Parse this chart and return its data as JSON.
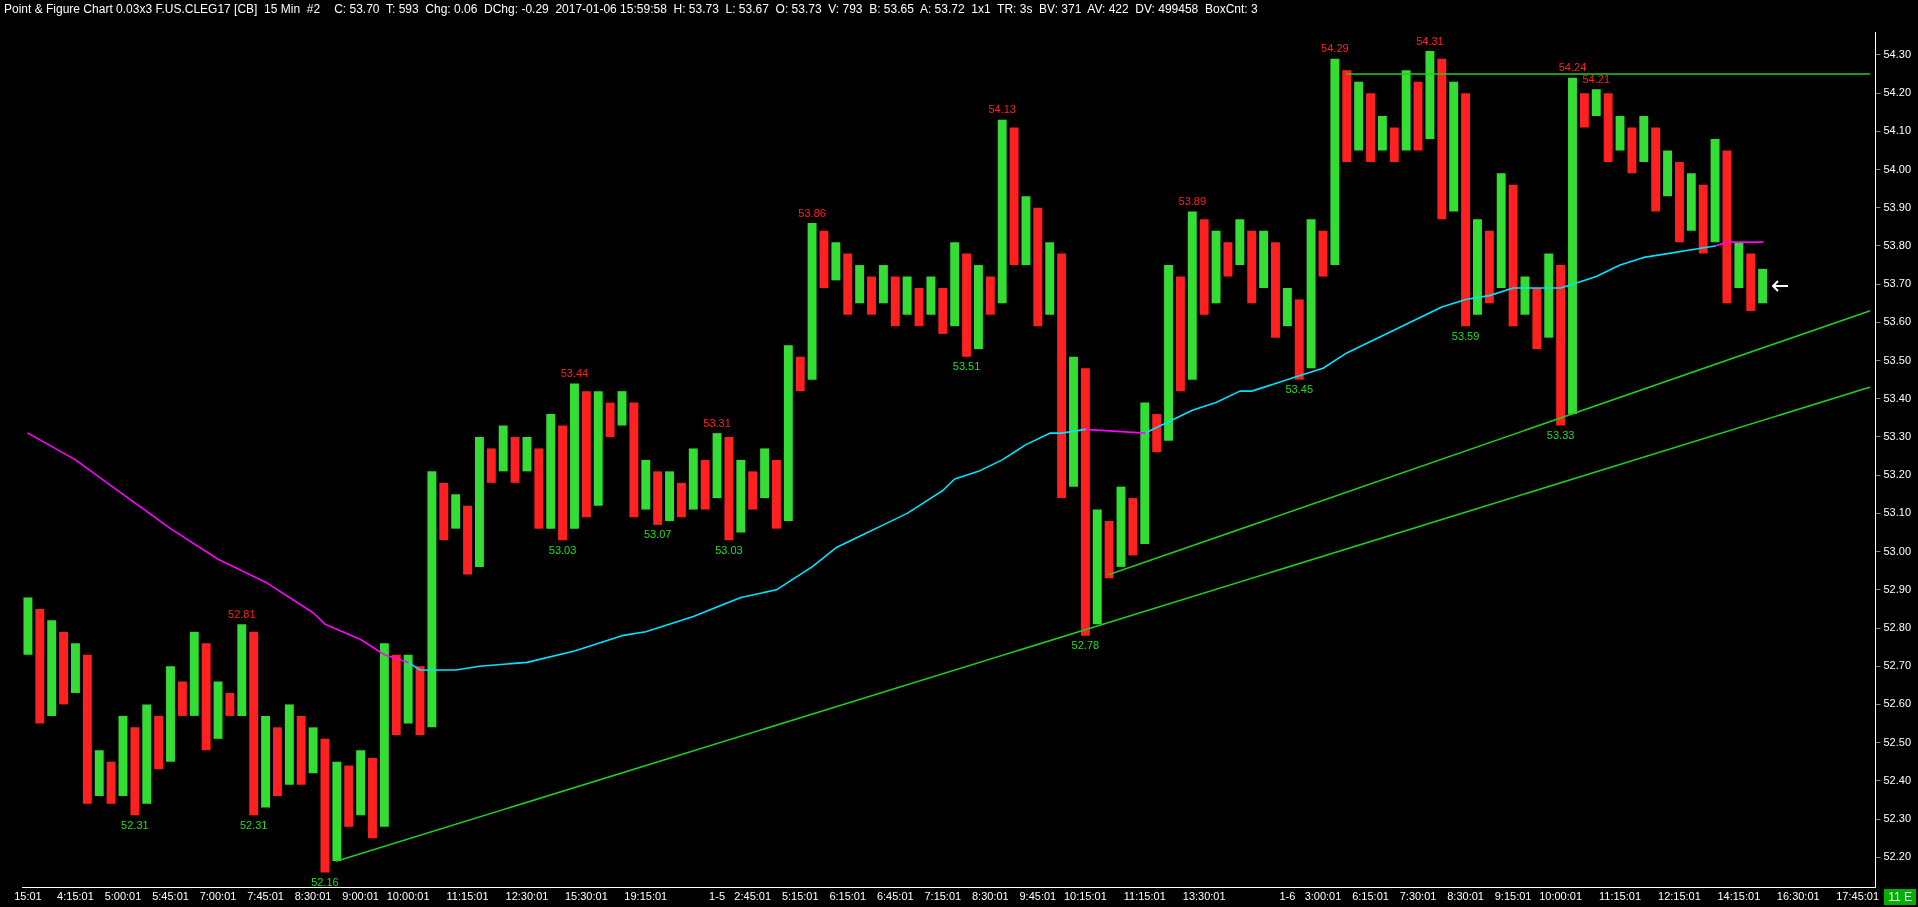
{
  "chart_data": {
    "type": "bar",
    "title": "Point & Figure Chart 0.03x3 F.US.CLEG17 [CB]  15 Min  #2",
    "subtitle": "C: 53.70  T: 593  Chg: 0.06  DChg: -0.29  2017-01-06 15:59:58  H: 53.73  L: 53.67  O: 53.73  V: 793  B: 53.65  A: 53.72  1x1  TR: 3s  BV: 371  AV: 422  DV: 499458  BoxCnt: 3",
    "marker": "none",
    "annotations": [
      "11 E",
      {
        "text": "52.31",
        "y": 52.31
      },
      {
        "text": "52.81",
        "y": 52.81
      },
      {
        "text": "52.31",
        "y": 52.31
      },
      {
        "text": "52.16",
        "y": 52.16
      },
      {
        "text": "53.03",
        "y": 53.03
      },
      {
        "text": "53.44",
        "y": 53.44
      },
      {
        "text": "53.07",
        "y": 53.07
      },
      {
        "text": "53.31",
        "y": 53.31
      },
      {
        "text": "53.03",
        "y": 53.03
      },
      {
        "text": "53.86",
        "y": 53.86
      },
      {
        "text": "53.51",
        "y": 53.51
      },
      {
        "text": "54.13",
        "y": 54.13
      },
      {
        "text": "52.78",
        "y": 52.78
      },
      {
        "text": "53.89",
        "y": 53.89
      },
      {
        "text": "53.45",
        "y": 53.45
      },
      {
        "text": "54.29",
        "y": 54.29
      },
      {
        "text": "54.31",
        "y": 54.31
      },
      {
        "text": "53.59",
        "y": 53.59
      },
      {
        "text": "53.33",
        "y": 53.33
      },
      {
        "text": "54.24",
        "y": 54.24
      },
      {
        "text": "54.21",
        "y": 54.21
      }
    ],
    "categories": [
      "15:01",
      null,
      null,
      null,
      "4:15:01",
      null,
      null,
      null,
      "5:00:01",
      null,
      null,
      null,
      "5:45:01",
      null,
      null,
      null,
      "7:00:01",
      null,
      null,
      null,
      "7:45:01",
      null,
      null,
      null,
      "8:30:01",
      null,
      null,
      null,
      "9:00:01",
      null,
      null,
      null,
      "10:00:01",
      null,
      null,
      null,
      null,
      "11:15:01",
      null,
      null,
      null,
      null,
      "12:30:01",
      null,
      null,
      null,
      null,
      "15:30:01",
      null,
      null,
      null,
      null,
      "19:15:01",
      null,
      null,
      null,
      null,
      null,
      "1-5",
      null,
      null,
      "2:45:01",
      null,
      null,
      null,
      "5:15:01",
      null,
      null,
      null,
      "6:15:01",
      null,
      null,
      null,
      "6:45:01",
      null,
      null,
      null,
      "7:15:01",
      null,
      null,
      null,
      "8:30:01",
      null,
      null,
      null,
      "9:45:01",
      null,
      null,
      null,
      "10:15:01",
      null,
      null,
      null,
      null,
      "11:15:01",
      null,
      null,
      null,
      null,
      "13:30:01",
      null,
      null,
      null,
      null,
      null,
      null,
      "1-6",
      null,
      null,
      "3:00:01",
      null,
      null,
      null,
      "6:15:01",
      null,
      null,
      null,
      "7:30:01",
      null,
      null,
      null,
      "8:30:01",
      null,
      null,
      null,
      "9:15:01",
      null,
      null,
      null,
      "10:00:01",
      null,
      null,
      null,
      null,
      "11:15:01",
      null,
      null,
      null,
      null,
      "12:15:01",
      null,
      null,
      null,
      null,
      "14:15:01",
      null,
      null,
      null,
      null,
      "16:30:01",
      null,
      null,
      null,
      null,
      "17:45:01",
      null
    ],
    "ylim": [
      52.12,
      54.36
    ],
    "yticks": [
      {
        "value": 52.2,
        "label": "52.20"
      },
      {
        "value": 52.3,
        "label": "52.30"
      },
      {
        "value": 52.4,
        "label": "52.40"
      },
      {
        "value": 52.5,
        "label": "52.50"
      },
      {
        "value": 52.6,
        "label": "52.60"
      },
      {
        "value": 52.7,
        "label": "52.70"
      },
      {
        "value": 52.8,
        "label": "52.80"
      },
      {
        "value": 52.9,
        "label": "52.90"
      },
      {
        "value": 53.0,
        "label": "53.00"
      },
      {
        "value": 53.1,
        "label": "53.10"
      },
      {
        "value": 53.2,
        "label": "53.20"
      },
      {
        "value": 53.3,
        "label": "53.30"
      },
      {
        "value": 53.4,
        "label": "53.40"
      },
      {
        "value": 53.5,
        "label": "53.50"
      },
      {
        "value": 53.6,
        "label": "53.60"
      },
      {
        "value": 53.7,
        "label": "53.70"
      },
      {
        "value": 53.8,
        "label": "53.80"
      },
      {
        "value": 53.9,
        "label": "53.90"
      },
      {
        "value": 54.0,
        "label": "54.00"
      },
      {
        "value": 54.1,
        "label": "54.10"
      },
      {
        "value": 54.2,
        "label": "54.20"
      },
      {
        "value": 54.3,
        "label": "54.30"
      }
    ],
    "series": [
      {
        "type": "bar",
        "colors": [
          "#33dd33",
          "#ff2020",
          "#33dd33",
          "#ff2020",
          "#33dd33",
          "#ff2020",
          "#33dd33",
          "#ff2020",
          "#33dd33",
          "#ff2020",
          "#33dd33",
          "#ff2020",
          "#33dd33",
          "#ff2020",
          "#33dd33",
          "#ff2020",
          "#33dd33",
          "#ff2020",
          "#33dd33",
          "#ff2020",
          "#33dd33",
          "#ff2020",
          "#33dd33",
          "#ff2020",
          "#33dd33",
          "#ff2020",
          "#33dd33",
          "#ff2020",
          "#33dd33",
          "#ff2020",
          "#33dd33",
          "#ff2020",
          "#33dd33",
          "#ff2020",
          "#33dd33",
          "#ff2020",
          "#33dd33",
          "#ff2020",
          "#33dd33",
          "#ff2020",
          "#33dd33",
          "#ff2020",
          "#33dd33",
          "#ff2020",
          "#33dd33",
          "#ff2020",
          "#33dd33",
          "#ff2020",
          "#33dd33",
          "#ff2020",
          "#33dd33",
          "#ff2020",
          "#33dd33",
          "#ff2020",
          "#33dd33",
          "#ff2020",
          "#33dd33",
          "#ff2020",
          "#33dd33",
          "#ff2020",
          "#33dd33",
          "#ff2020",
          "#33dd33",
          "#ff2020",
          "#33dd33",
          "#ff2020",
          "#33dd33",
          "#ff2020",
          "#33dd33",
          "#ff2020",
          "#33dd33",
          "#ff2020",
          "#33dd33",
          "#ff2020",
          "#33dd33",
          "#ff2020",
          "#33dd33",
          "#ff2020",
          "#33dd33",
          "#ff2020",
          "#33dd33",
          "#ff2020",
          "#33dd33",
          "#ff2020",
          "#33dd33",
          "#ff2020",
          "#33dd33",
          "#ff2020",
          "#33dd33",
          "#ff2020",
          "#33dd33",
          "#ff2020",
          "#33dd33",
          "#ff2020",
          "#33dd33",
          "#ff2020",
          "#33dd33",
          "#ff2020",
          "#33dd33",
          "#ff2020",
          "#33dd33",
          "#ff2020",
          "#33dd33",
          "#ff2020",
          "#33dd33",
          "#ff2020",
          "#33dd33",
          "#ff2020",
          "#33dd33",
          "#ff2020",
          "#33dd33",
          "#ff2020",
          "#33dd33",
          "#ff2020",
          "#33dd33",
          "#ff2020",
          "#33dd33",
          "#ff2020",
          "#33dd33",
          "#ff2020",
          "#33dd33",
          "#ff2020",
          "#33dd33",
          "#ff2020",
          "#33dd33",
          "#ff2020",
          "#33dd33",
          "#ff2020",
          "#33dd33",
          "#ff2020",
          "#33dd33",
          "#ff2020",
          "#33dd33",
          "#ff2020",
          "#33dd33",
          "#ff2020",
          "#33dd33",
          "#ff2020",
          "#33dd33",
          "#ff2020",
          "#33dd33",
          "#ff2020",
          "#33dd33",
          "#ff2020",
          "#33dd33",
          "#ff2020",
          "#33dd33",
          "#ff2020",
          "#33dd33",
          "#ff2020",
          "#33dd33",
          "#ff2020",
          "#33dd33",
          "#ff2020",
          "#33dd33",
          "#ff2020"
        ],
        "base": [
          52.73,
          52.55,
          52.57,
          52.6,
          52.63,
          52.34,
          52.36,
          52.34,
          52.36,
          52.31,
          52.34,
          52.43,
          52.45,
          52.57,
          52.57,
          52.48,
          52.51,
          52.57,
          52.57,
          52.31,
          52.33,
          52.36,
          52.39,
          52.39,
          52.42,
          52.16,
          52.19,
          52.28,
          52.31,
          52.25,
          52.28,
          52.52,
          52.55,
          52.52,
          52.54,
          53.03,
          53.06,
          52.94,
          52.96,
          53.18,
          53.21,
          53.18,
          53.21,
          53.06,
          53.06,
          53.03,
          53.06,
          53.09,
          53.12,
          53.3,
          53.33,
          53.09,
          53.11,
          53.07,
          53.08,
          53.09,
          53.11,
          53.11,
          53.14,
          53.03,
          53.05,
          53.11,
          53.14,
          53.06,
          53.08,
          53.42,
          53.45,
          53.69,
          53.71,
          53.62,
          53.65,
          53.62,
          53.65,
          53.59,
          53.62,
          53.59,
          53.62,
          53.57,
          53.59,
          53.51,
          53.53,
          53.62,
          53.65,
          53.75,
          53.75,
          53.59,
          53.62,
          53.14,
          53.17,
          52.78,
          52.81,
          52.93,
          52.96,
          52.99,
          53.02,
          53.26,
          53.29,
          53.42,
          53.45,
          53.62,
          53.65,
          53.72,
          53.75,
          53.65,
          53.69,
          53.56,
          53.59,
          53.45,
          53.48,
          53.72,
          53.75,
          54.02,
          54.05,
          54.02,
          54.05,
          54.02,
          54.05,
          54.05,
          54.08,
          53.87,
          53.89,
          53.59,
          53.62,
          53.65,
          53.69,
          53.59,
          53.62,
          53.53,
          53.56,
          53.33,
          53.36,
          54.11,
          54.14,
          54.02,
          54.05,
          53.99,
          54.02,
          53.89,
          53.93,
          53.81,
          53.84,
          53.78,
          53.81,
          53.65,
          53.69,
          53.63,
          53.65,
          null,
          null,
          null,
          null,
          null,
          null,
          null,
          null,
          null
        ],
        "values": [
          0.15,
          0.3,
          0.25,
          0.19,
          0.13,
          0.39,
          0.12,
          0.11,
          0.21,
          0.23,
          0.26,
          0.14,
          0.25,
          0.09,
          0.22,
          0.28,
          0.15,
          0.06,
          0.24,
          0.48,
          0.24,
          0.18,
          0.21,
          0.18,
          0.12,
          0.35,
          0.26,
          0.16,
          0.17,
          0.21,
          0.48,
          0.21,
          0.18,
          0.18,
          0.67,
          0.15,
          0.09,
          0.18,
          0.34,
          0.09,
          0.12,
          0.12,
          0.09,
          0.21,
          0.3,
          0.3,
          0.38,
          0.33,
          0.3,
          0.09,
          0.09,
          0.3,
          0.13,
          0.14,
          0.13,
          0.09,
          0.16,
          0.13,
          0.17,
          0.27,
          0.19,
          0.1,
          0.13,
          0.18,
          0.46,
          0.09,
          0.41,
          0.15,
          0.1,
          0.16,
          0.1,
          0.1,
          0.1,
          0.13,
          0.1,
          0.1,
          0.1,
          0.12,
          0.22,
          0.27,
          0.22,
          0.1,
          0.48,
          0.36,
          0.18,
          0.31,
          0.19,
          0.64,
          0.34,
          0.7,
          0.3,
          0.15,
          0.21,
          0.15,
          0.37,
          0.1,
          0.46,
          0.3,
          0.44,
          0.25,
          0.19,
          0.09,
          0.12,
          0.19,
          0.15,
          0.25,
          0.1,
          0.21,
          0.39,
          0.12,
          0.54,
          0.24,
          0.18,
          0.18,
          0.09,
          0.09,
          0.21,
          0.18,
          0.23,
          0.42,
          0.34,
          0.61,
          0.25,
          0.19,
          0.3,
          0.37,
          0.1,
          0.16,
          0.22,
          0.42,
          0.88,
          0.09,
          0.07,
          0.18,
          0.09,
          0.12,
          0.12,
          0.22,
          0.12,
          0.21,
          0.15,
          0.18,
          0.27,
          0.4,
          0.12,
          0.15,
          0.09,
          null,
          null,
          null,
          null,
          null,
          null,
          null,
          null,
          null
        ]
      },
      {
        "type": "line",
        "color": "#ff00ff",
        "values": [
          53.31,
          null,
          null,
          null,
          53.24,
          null,
          null,
          null,
          53.15,
          null,
          null,
          null,
          53.06,
          null,
          null,
          null,
          52.98,
          null,
          null,
          null,
          52.92,
          null,
          null,
          null,
          52.84,
          52.81,
          null,
          null,
          52.77,
          null,
          52.73,
          null,
          52.71,
          null,
          null,
          null,
          null,
          null,
          null,
          null,
          null,
          null,
          null,
          null,
          null,
          null,
          null,
          null,
          null,
          null,
          null,
          null,
          null,
          null,
          null,
          null,
          null,
          null,
          null,
          null,
          null,
          null,
          null,
          null,
          null,
          null,
          null,
          null,
          null,
          null,
          null,
          null,
          null,
          null,
          null,
          null,
          null,
          null,
          null,
          null,
          null,
          null,
          null,
          null,
          null,
          null,
          null,
          null,
          null,
          null,
          null,
          null,
          null,
          null,
          null,
          null,
          null,
          null,
          null,
          null,
          null,
          null,
          null,
          null,
          null,
          null,
          null,
          null,
          null,
          null,
          null,
          null,
          null,
          null,
          null,
          null,
          null,
          null,
          null,
          null,
          null,
          null,
          null,
          null,
          null,
          null,
          null,
          null,
          null,
          null,
          null,
          null,
          null,
          null,
          null,
          null,
          null,
          null,
          null,
          null,
          null,
          null,
          null,
          null,
          null,
          null,
          null,
          null,
          null,
          null,
          null,
          null,
          null,
          null,
          null,
          null
        ]
      },
      {
        "type": "line",
        "color": "#00e5ff",
        "values": [
          null,
          null,
          null,
          null,
          null,
          null,
          null,
          null,
          null,
          null,
          null,
          null,
          null,
          null,
          null,
          null,
          null,
          null,
          null,
          null,
          null,
          null,
          null,
          null,
          null,
          null,
          null,
          null,
          null,
          null,
          null,
          null,
          52.71,
          52.69,
          null,
          null,
          52.69,
          null,
          52.7,
          null,
          null,
          null,
          52.71,
          null,
          null,
          null,
          52.74,
          null,
          null,
          null,
          52.78,
          null,
          52.79,
          null,
          null,
          null,
          52.83,
          null,
          null,
          null,
          52.88,
          null,
          null,
          52.9,
          52.92,
          null,
          52.96,
          null,
          53.01,
          null,
          53.04,
          null,
          53.07,
          null,
          53.1,
          null,
          53.14,
          53.16,
          53.19,
          null,
          53.21,
          null,
          53.24,
          null,
          53.28,
          null,
          53.31,
          53.31,
          null,
          53.32,
          null,
          null,
          null,
          null,
          null,
          null,
          null,
          null,
          null,
          null,
          null,
          null,
          null,
          null,
          null,
          null,
          null,
          null,
          null,
          null,
          null,
          null,
          null,
          null,
          null,
          null,
          null,
          null,
          null,
          null,
          null,
          null,
          null,
          null,
          null,
          null,
          null,
          null,
          null,
          null,
          null,
          null,
          null,
          null,
          null,
          null,
          null,
          null,
          null,
          null,
          null,
          null,
          null,
          null,
          null,
          null,
          null,
          null,
          null,
          null,
          null,
          null,
          null,
          null,
          null,
          null
        ]
      },
      {
        "type": "line",
        "color": "#ff00ff",
        "values": [
          null,
          null,
          null,
          null,
          null,
          null,
          null,
          null,
          null,
          null,
          null,
          null,
          null,
          null,
          null,
          null,
          null,
          null,
          null,
          null,
          null,
          null,
          null,
          null,
          null,
          null,
          null,
          null,
          null,
          null,
          null,
          null,
          null,
          null,
          null,
          null,
          null,
          null,
          null,
          null,
          null,
          null,
          null,
          null,
          null,
          null,
          null,
          null,
          null,
          null,
          null,
          null,
          null,
          null,
          null,
          null,
          null,
          null,
          null,
          null,
          null,
          null,
          null,
          null,
          null,
          null,
          null,
          null,
          null,
          null,
          null,
          null,
          null,
          null,
          null,
          null,
          null,
          null,
          null,
          null,
          null,
          null,
          null,
          null,
          null,
          null,
          null,
          null,
          null,
          53.32,
          null,
          null,
          null,
          null,
          53.31,
          null,
          null,
          null,
          null,
          null,
          null,
          null,
          null,
          null,
          null,
          null,
          null,
          null,
          null,
          null,
          null,
          null,
          null,
          null,
          null,
          null,
          null,
          null,
          null,
          null,
          null,
          null,
          null,
          null,
          null,
          null,
          null,
          null,
          null,
          null,
          null,
          null,
          null,
          null,
          null,
          null,
          null,
          null,
          null,
          null,
          null,
          null,
          null,
          null,
          null,
          null,
          null,
          null,
          null,
          null,
          null,
          null,
          null,
          null,
          null,
          null
        ]
      },
      {
        "type": "line",
        "color": "#00e5ff",
        "values": [
          null,
          null,
          null,
          null,
          null,
          null,
          null,
          null,
          null,
          null,
          null,
          null,
          null,
          null,
          null,
          null,
          null,
          null,
          null,
          null,
          null,
          null,
          null,
          null,
          null,
          null,
          null,
          null,
          null,
          null,
          null,
          null,
          null,
          null,
          null,
          null,
          null,
          null,
          null,
          null,
          null,
          null,
          null,
          null,
          null,
          null,
          null,
          null,
          null,
          null,
          null,
          null,
          null,
          null,
          null,
          null,
          null,
          null,
          null,
          null,
          null,
          null,
          null,
          null,
          null,
          null,
          null,
          null,
          null,
          null,
          null,
          null,
          null,
          null,
          null,
          null,
          null,
          null,
          null,
          null,
          null,
          null,
          null,
          null,
          null,
          null,
          null,
          null,
          null,
          null,
          null,
          null,
          null,
          null,
          53.31,
          null,
          53.34,
          null,
          53.37,
          null,
          53.39,
          null,
          53.42,
          53.42,
          null,
          53.44,
          null,
          53.46,
          null,
          53.48,
          null,
          53.52,
          null,
          53.55,
          null,
          53.58,
          null,
          53.61,
          null,
          53.64,
          null,
          53.66,
          null,
          53.67,
          null,
          53.69,
          null,
          53.69,
          null,
          53.69,
          53.7,
          null,
          53.72,
          null,
          53.75,
          null,
          53.77,
          null,
          53.78,
          null,
          53.79,
          null,
          53.8,
          null,
          null,
          null,
          null,
          null,
          null,
          null,
          null,
          null,
          null,
          null,
          null,
          null
        ]
      },
      {
        "type": "line",
        "color": "#ff00ff",
        "values": [
          null,
          null,
          null,
          null,
          null,
          null,
          null,
          null,
          null,
          null,
          null,
          null,
          null,
          null,
          null,
          null,
          null,
          null,
          null,
          null,
          null,
          null,
          null,
          null,
          null,
          null,
          null,
          null,
          null,
          null,
          null,
          null,
          null,
          null,
          null,
          null,
          null,
          null,
          null,
          null,
          null,
          null,
          null,
          null,
          null,
          null,
          null,
          null,
          null,
          null,
          null,
          null,
          null,
          null,
          null,
          null,
          null,
          null,
          null,
          null,
          null,
          null,
          null,
          null,
          null,
          null,
          null,
          null,
          null,
          null,
          null,
          null,
          null,
          null,
          null,
          null,
          null,
          null,
          null,
          null,
          null,
          null,
          null,
          null,
          null,
          null,
          null,
          null,
          null,
          null,
          null,
          null,
          null,
          null,
          null,
          null,
          null,
          null,
          null,
          null,
          null,
          null,
          null,
          null,
          null,
          null,
          null,
          null,
          null,
          null,
          null,
          null,
          null,
          null,
          null,
          null,
          null,
          null,
          null,
          null,
          null,
          null,
          null,
          null,
          null,
          null,
          null,
          null,
          null,
          null,
          null,
          null,
          null,
          null,
          null,
          null,
          null,
          null,
          null,
          null,
          null,
          null,
          53.8,
          53.81,
          null,
          null,
          53.81,
          null,
          null,
          null,
          null,
          null,
          null,
          null,
          null,
          null
        ]
      },
      {
        "type": "line",
        "color": "#22cc22",
        "values": [
          null,
          null,
          null,
          null,
          null,
          null,
          null,
          null,
          null,
          null,
          null,
          null,
          null,
          null,
          null,
          null,
          null,
          null,
          null,
          null,
          null,
          null,
          null,
          null,
          null,
          null,
          52.19,
          null,
          null,
          null,
          null,
          null,
          null,
          null,
          null,
          null,
          null,
          null,
          null,
          null,
          null,
          null,
          null,
          null,
          null,
          null,
          null,
          null,
          null,
          null,
          null,
          null,
          null,
          null,
          null,
          null,
          null,
          null,
          null,
          null,
          null,
          null,
          null,
          null,
          null,
          null,
          null,
          null,
          null,
          null,
          null,
          null,
          null,
          null,
          null,
          null,
          null,
          null,
          null,
          null,
          null,
          null,
          null,
          null,
          null,
          null,
          null,
          null,
          null,
          null,
          null,
          null,
          null,
          null,
          null,
          null,
          null,
          null,
          null,
          null,
          null,
          null,
          null,
          null,
          null,
          null,
          null,
          null,
          null,
          null,
          null,
          null,
          null,
          null,
          null,
          null,
          null,
          null,
          null,
          null,
          null,
          null,
          null,
          null,
          null,
          null,
          null,
          null,
          null,
          null,
          null,
          null,
          null,
          null,
          null,
          null,
          null,
          null,
          null,
          null,
          null,
          null,
          null,
          null,
          null,
          null,
          null,
          null,
          null,
          null,
          null,
          null,
          null,
          null,
          null,
          53.43
        ]
      },
      {
        "type": "line",
        "color": "#22cc22",
        "values": [
          null,
          null,
          null,
          null,
          null,
          null,
          null,
          null,
          null,
          null,
          null,
          null,
          null,
          null,
          null,
          null,
          null,
          null,
          null,
          null,
          null,
          null,
          null,
          null,
          null,
          null,
          null,
          null,
          null,
          null,
          null,
          null,
          null,
          null,
          null,
          null,
          null,
          null,
          null,
          null,
          null,
          null,
          null,
          null,
          null,
          null,
          null,
          null,
          null,
          null,
          null,
          null,
          null,
          null,
          null,
          null,
          null,
          null,
          null,
          null,
          null,
          null,
          null,
          null,
          null,
          null,
          null,
          null,
          null,
          null,
          null,
          null,
          null,
          null,
          null,
          null,
          null,
          null,
          null,
          null,
          null,
          null,
          null,
          null,
          null,
          null,
          null,
          null,
          null,
          null,
          null,
          52.94,
          null,
          null,
          null,
          null,
          null,
          null,
          null,
          null,
          null,
          null,
          null,
          null,
          null,
          null,
          null,
          null,
          null,
          null,
          null,
          null,
          null,
          null,
          null,
          null,
          null,
          null,
          null,
          null,
          null,
          null,
          null,
          null,
          null,
          null,
          null,
          null,
          null,
          null,
          null,
          null,
          null,
          null,
          null,
          null,
          null,
          null,
          null,
          null,
          null,
          null,
          null,
          null,
          null,
          null,
          null,
          null,
          null,
          null,
          null,
          null,
          null,
          null,
          null,
          53.63
        ]
      },
      {
        "type": "line",
        "color": "#22cc22",
        "values": [
          null,
          null,
          null,
          null,
          null,
          null,
          null,
          null,
          null,
          null,
          null,
          null,
          null,
          null,
          null,
          null,
          null,
          null,
          null,
          null,
          null,
          null,
          null,
          null,
          null,
          null,
          null,
          null,
          null,
          null,
          null,
          null,
          null,
          null,
          null,
          null,
          null,
          null,
          null,
          null,
          null,
          null,
          null,
          null,
          null,
          null,
          null,
          null,
          null,
          null,
          null,
          null,
          null,
          null,
          null,
          null,
          null,
          null,
          null,
          null,
          null,
          null,
          null,
          null,
          null,
          null,
          null,
          null,
          null,
          null,
          null,
          null,
          null,
          null,
          null,
          null,
          null,
          null,
          null,
          null,
          null,
          null,
          null,
          null,
          null,
          null,
          null,
          null,
          null,
          null,
          null,
          null,
          null,
          null,
          null,
          null,
          null,
          null,
          null,
          null,
          null,
          null,
          null,
          null,
          null,
          null,
          null,
          null,
          null,
          null,
          null,
          54.25,
          null,
          null,
          null,
          null,
          null,
          null,
          null,
          null,
          null,
          null,
          null,
          null,
          null,
          null,
          null,
          null,
          null,
          null,
          null,
          null,
          null,
          null,
          null,
          null,
          null,
          null,
          null,
          null,
          null,
          null,
          null,
          null,
          null,
          null,
          null,
          null,
          null,
          null,
          null,
          null,
          null,
          null,
          null,
          54.25
        ]
      }
    ]
  }
}
